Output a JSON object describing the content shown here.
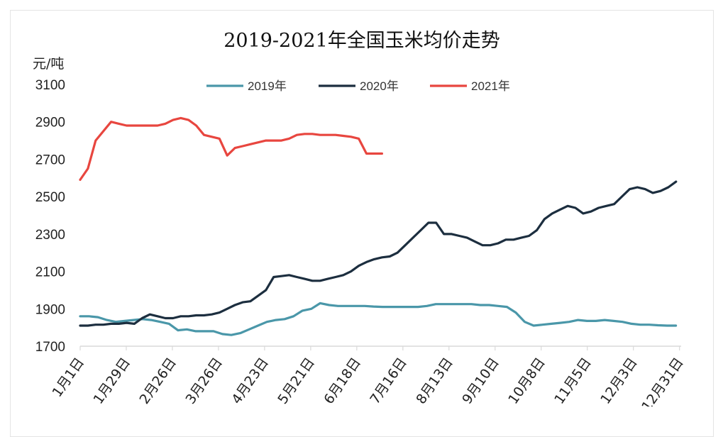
{
  "chart_data": {
    "type": "line",
    "title": "2019-2021年全国玉米均价走势",
    "ylabel": "元/吨",
    "xlabel": "",
    "ylim": [
      1700,
      3100
    ],
    "yticks": [
      1700,
      1900,
      2100,
      2300,
      2500,
      2700,
      2900,
      3100
    ],
    "grid": false,
    "legend": "top-center",
    "x_tick_labels": [
      "1月1日",
      "1月29日",
      "2月26日",
      "3月26日",
      "4月23日",
      "5月21日",
      "6月18日",
      "7月16日",
      "8月13日",
      "9月10日",
      "10月8日",
      "11月5日",
      "12月3日",
      "12月31日"
    ],
    "series": [
      {
        "name": "2019年",
        "color": "#4a97a9",
        "values": [
          1860,
          1860,
          1855,
          1840,
          1830,
          1835,
          1840,
          1845,
          1840,
          1830,
          1820,
          1785,
          1790,
          1780,
          1780,
          1780,
          1765,
          1760,
          1770,
          1790,
          1810,
          1830,
          1840,
          1845,
          1860,
          1890,
          1900,
          1930,
          1920,
          1915,
          1915,
          1915,
          1915,
          1912,
          1910,
          1910,
          1910,
          1910,
          1910,
          1915,
          1925,
          1925,
          1925,
          1925,
          1925,
          1920,
          1920,
          1915,
          1910,
          1880,
          1830,
          1810,
          1815,
          1820,
          1825,
          1830,
          1840,
          1835,
          1835,
          1840,
          1835,
          1830,
          1820,
          1815,
          1815,
          1812,
          1810,
          1810
        ]
      },
      {
        "name": "2020年",
        "color": "#1c2e3f",
        "values": [
          1810,
          1810,
          1815,
          1815,
          1820,
          1820,
          1825,
          1820,
          1850,
          1870,
          1860,
          1850,
          1850,
          1860,
          1860,
          1865,
          1865,
          1870,
          1880,
          1900,
          1920,
          1935,
          1940,
          1970,
          2000,
          2070,
          2075,
          2080,
          2070,
          2060,
          2050,
          2050,
          2060,
          2070,
          2080,
          2100,
          2130,
          2150,
          2165,
          2175,
          2180,
          2200,
          2240,
          2280,
          2320,
          2360,
          2360,
          2300,
          2300,
          2290,
          2280,
          2260,
          2240,
          2240,
          2250,
          2270,
          2270,
          2280,
          2290,
          2320,
          2380,
          2410,
          2430,
          2450,
          2440,
          2410,
          2420,
          2440,
          2450,
          2460,
          2500,
          2540,
          2550,
          2540,
          2520,
          2530,
          2550,
          2580
        ]
      },
      {
        "name": "2021年",
        "color": "#e8463f",
        "values": [
          2590,
          2650,
          2800,
          2850,
          2900,
          2890,
          2880,
          2880,
          2880,
          2880,
          2880,
          2890,
          2910,
          2920,
          2910,
          2880,
          2830,
          2820,
          2810,
          2720,
          2760,
          2770,
          2780,
          2790,
          2800,
          2800,
          2800,
          2810,
          2830,
          2835,
          2835,
          2830,
          2830,
          2830,
          2825,
          2820,
          2810,
          2730,
          2730,
          2730
        ]
      }
    ]
  }
}
